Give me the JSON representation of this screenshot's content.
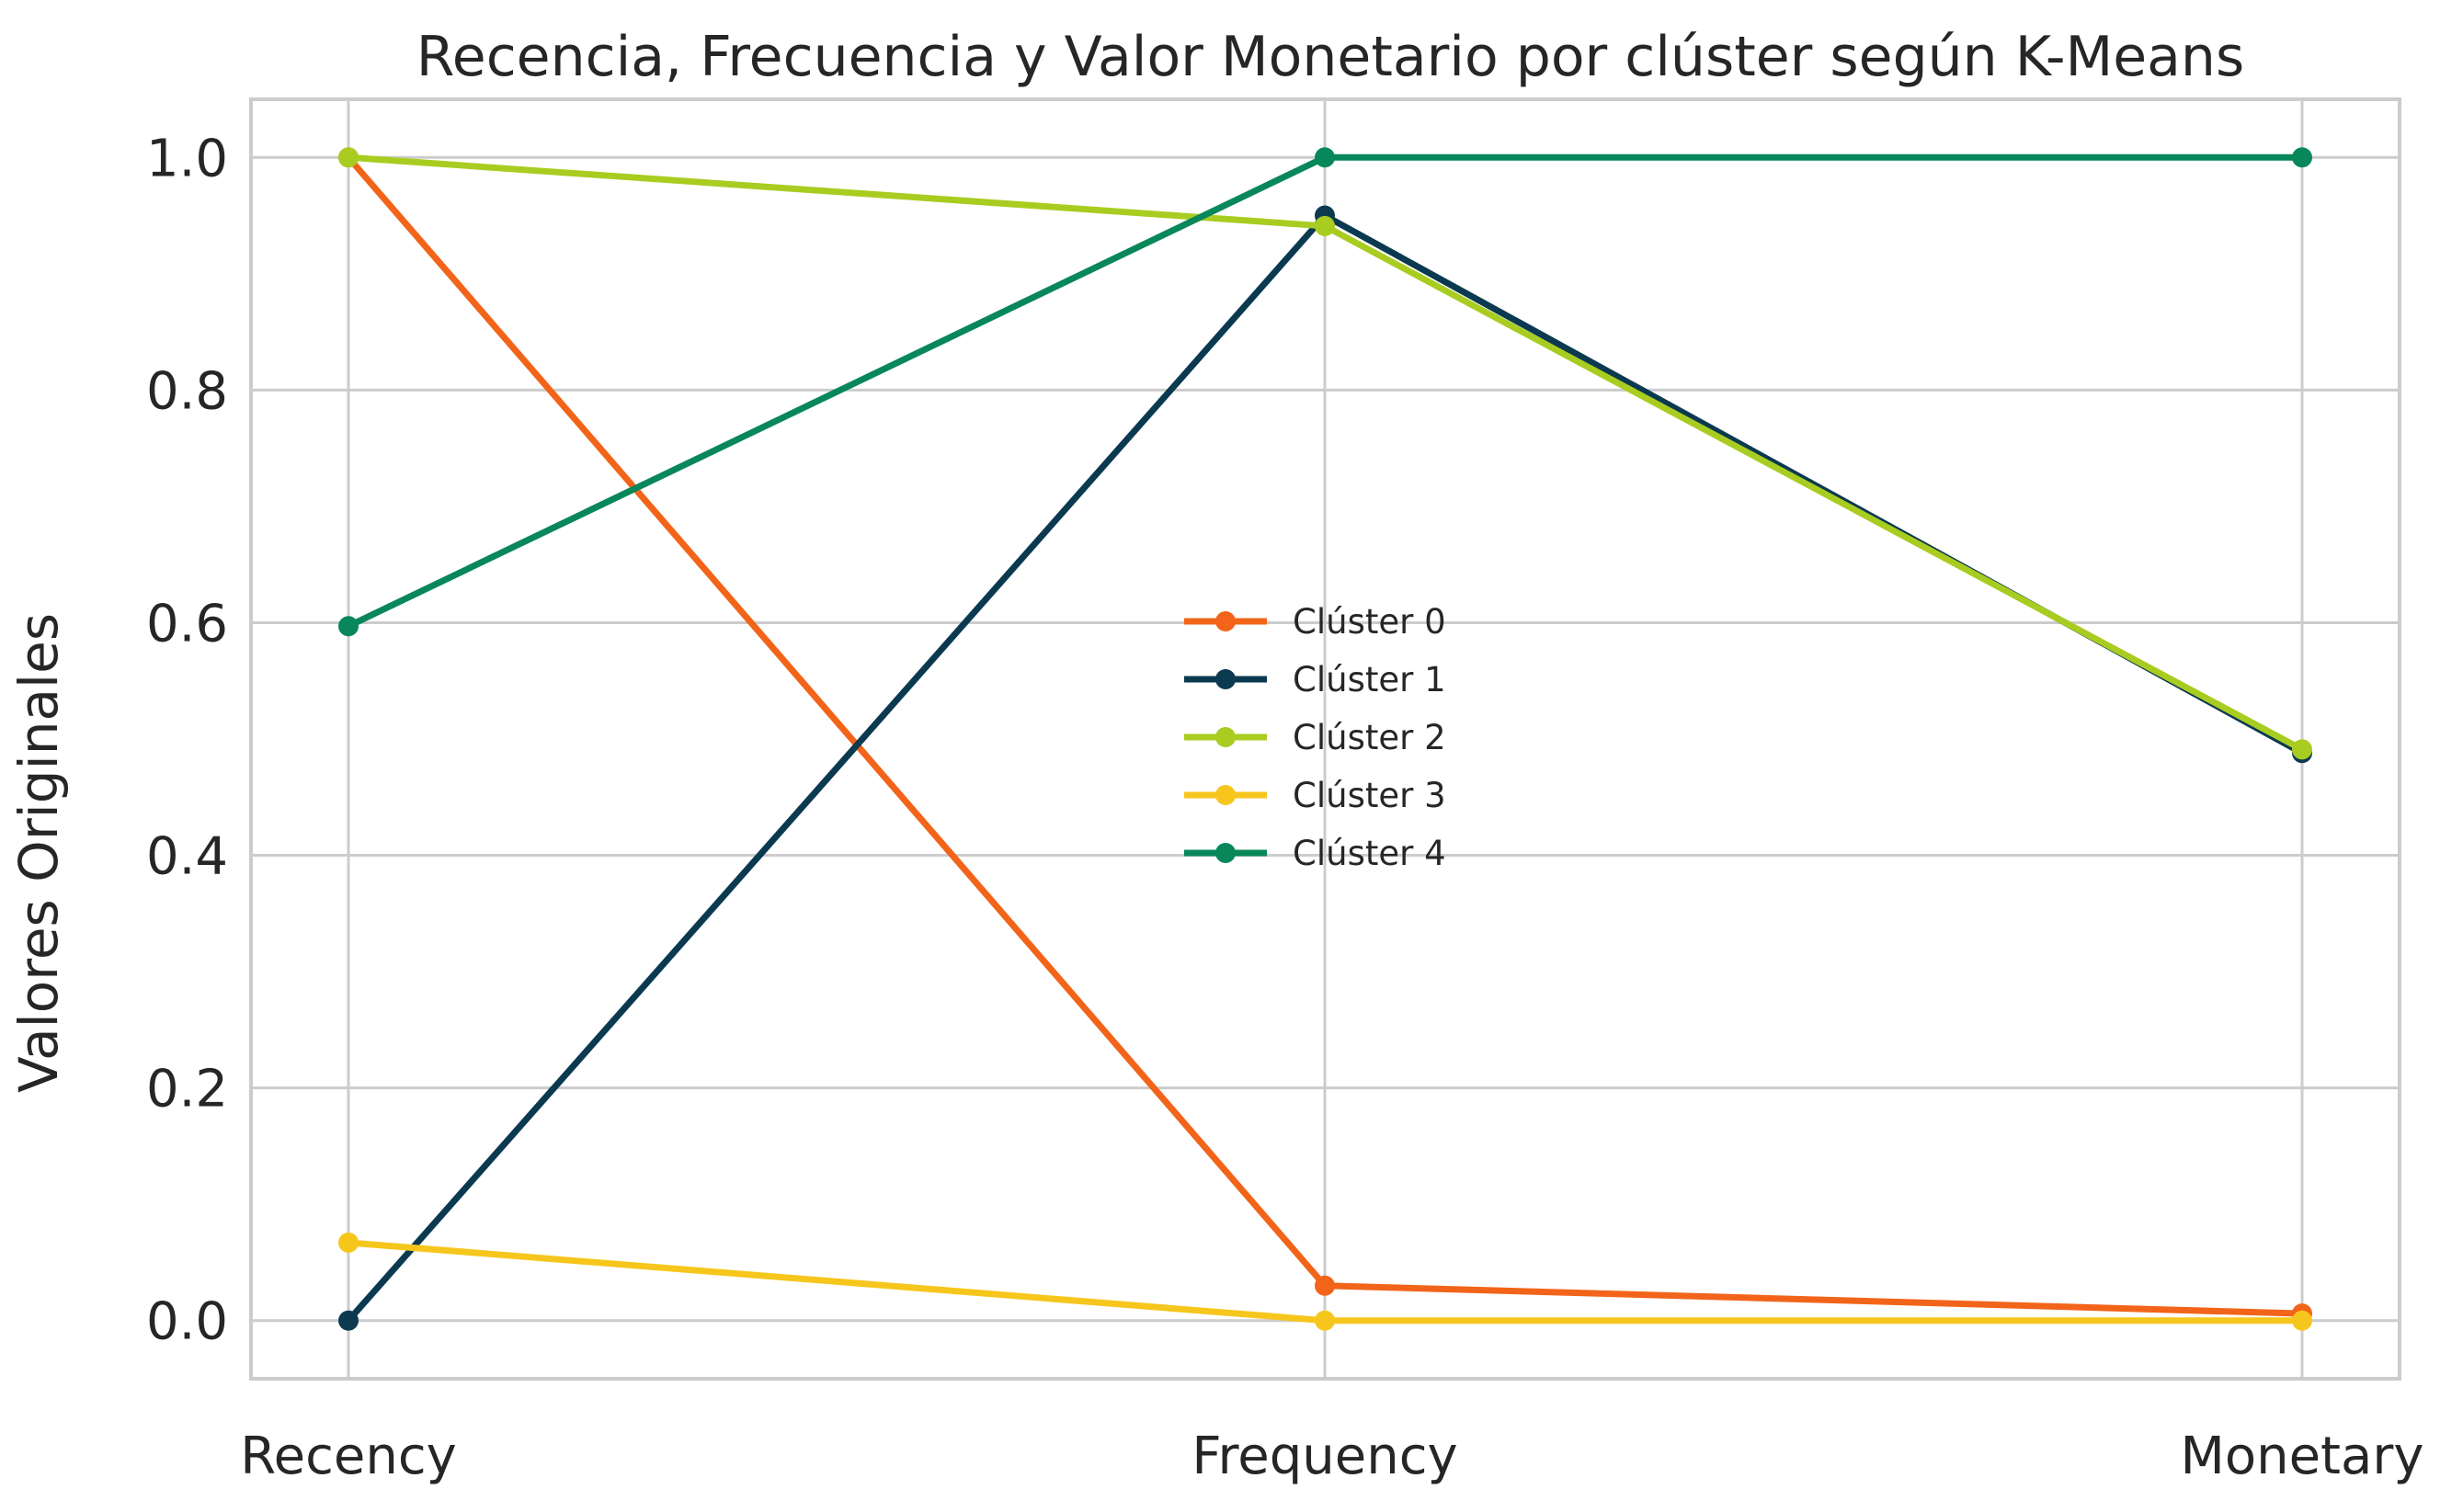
{
  "chart_data": {
    "type": "line",
    "title": "Recencia, Frecuencia y Valor Monetario por clúster según K-Means",
    "xlabel": "",
    "ylabel": "Valores Originales",
    "categories": [
      "Recency",
      "Frequency",
      "Monetary"
    ],
    "ylim": [
      -0.05,
      1.05
    ],
    "yticks": [
      0.0,
      0.2,
      0.4,
      0.6,
      0.8,
      1.0
    ],
    "ytick_labels": [
      "0.0",
      "0.2",
      "0.4",
      "0.6",
      "0.8",
      "1.0"
    ],
    "grid": true,
    "legend_position": "center",
    "series": [
      {
        "name": "Clúster 0",
        "color": "#f26419",
        "values": [
          1.0,
          0.03,
          0.006
        ]
      },
      {
        "name": "Clúster 1",
        "color": "#0b3950",
        "values": [
          0.0,
          0.95,
          0.488
        ]
      },
      {
        "name": "Clúster 2",
        "color": "#a9cc21",
        "values": [
          1.0,
          0.941,
          0.491
        ]
      },
      {
        "name": "Clúster 3",
        "color": "#f6c61c",
        "values": [
          0.067,
          0.0,
          0.0
        ]
      },
      {
        "name": "Clúster 4",
        "color": "#08875a",
        "values": [
          0.597,
          1.0,
          1.0
        ]
      }
    ]
  }
}
